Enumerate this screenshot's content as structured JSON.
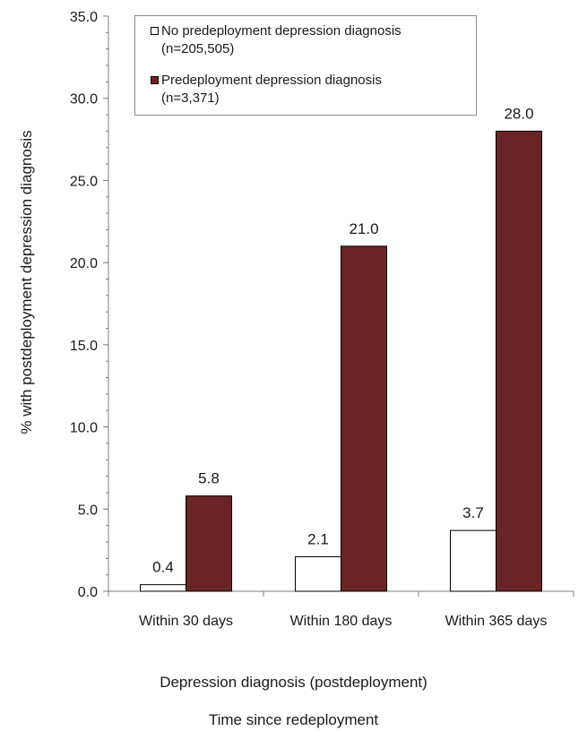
{
  "chart_data": {
    "type": "bar",
    "title": "",
    "categories": [
      "Within 30 days",
      "Within 180 days",
      "Within 365 days"
    ],
    "series": [
      {
        "name": "No predeployment depression diagnosis",
        "subtitle": "(n=205,505)",
        "values": [
          0.4,
          2.1,
          3.7
        ],
        "labels": [
          "0.4",
          "2.1",
          "3.7"
        ],
        "color": "#ffffff",
        "stroke": "#000000"
      },
      {
        "name": "Predeployment depression diagnosis",
        "subtitle": "(n=3,371)",
        "values": [
          5.8,
          21.0,
          28.0
        ],
        "labels": [
          "5.8",
          "21.0",
          "28.0"
        ],
        "color": "#6b2426",
        "stroke": "#000000"
      }
    ],
    "ylabel": "% with postdeployment depression diagnosis",
    "xlabel": "Depression diagnosis (postdeployment)",
    "xlabel2": "Time since redeployment",
    "ylim": [
      0,
      35
    ],
    "yticks": [
      "0.0",
      "5.0",
      "10.0",
      "15.0",
      "20.0",
      "25.0",
      "30.0",
      "35.0"
    ],
    "ytick_values": [
      0,
      5,
      10,
      15,
      20,
      25,
      30,
      35
    ],
    "grid": false,
    "legend_position": "top-left"
  }
}
